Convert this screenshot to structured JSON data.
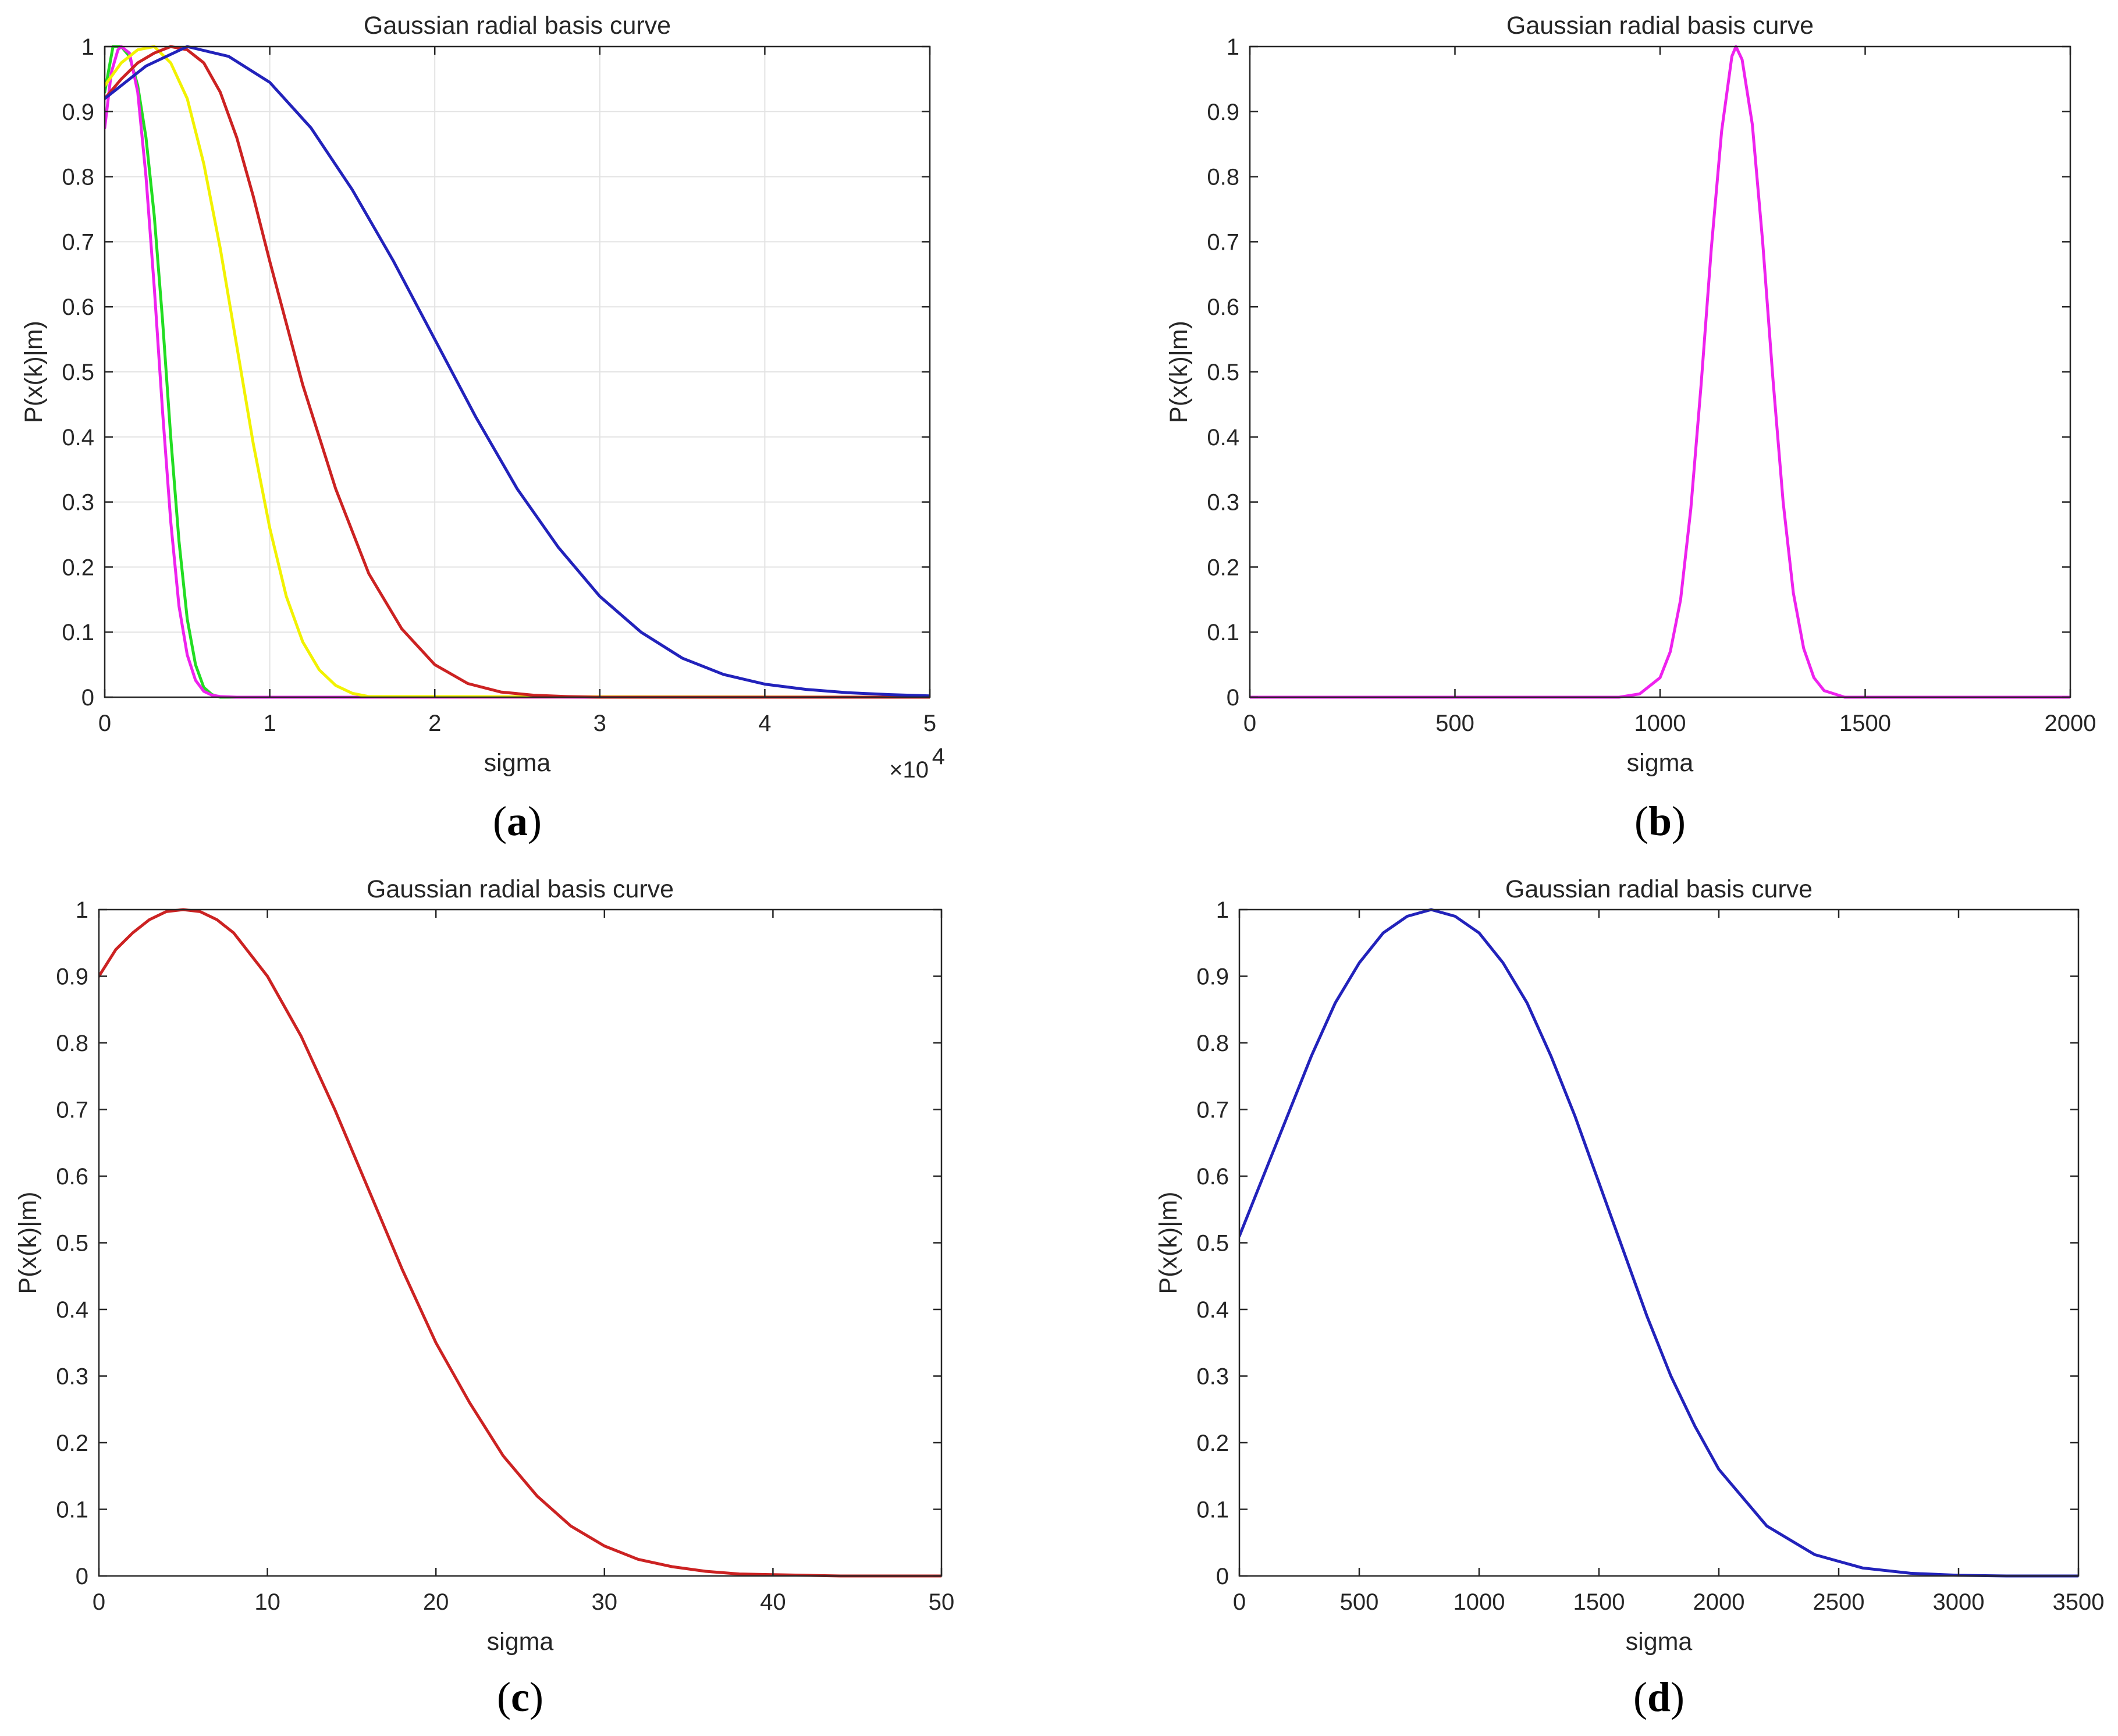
{
  "chart_data": [
    {
      "panel": "a",
      "caption_letter": "a",
      "type": "line",
      "title": "Gaussian radial basis curve",
      "xlabel": "sigma",
      "ylabel": "P(x(k)|m)",
      "x_multiplier": "×10",
      "x_multiplier_exp": "4",
      "grid": true,
      "xlim": [
        0,
        5
      ],
      "ylim": [
        0,
        1
      ],
      "xticks": [
        0,
        1,
        2,
        3,
        4,
        5
      ],
      "xtick_labels": [
        "0",
        "1",
        "2",
        "3",
        "4",
        "5"
      ],
      "yticks": [
        0,
        0.1,
        0.2,
        0.3,
        0.4,
        0.5,
        0.6,
        0.7,
        0.8,
        0.9,
        1
      ],
      "ytick_labels": [
        "0",
        "0.1",
        "0.2",
        "0.3",
        "0.4",
        "0.5",
        "0.6",
        "0.7",
        "0.8",
        "0.9",
        "1"
      ],
      "series": [
        {
          "name": "green",
          "color": "#22dd22",
          "x": [
            0,
            0.05,
            0.1,
            0.15,
            0.2,
            0.25,
            0.3,
            0.35,
            0.4,
            0.45,
            0.5,
            0.55,
            0.6,
            0.65,
            0.7,
            5
          ],
          "y": [
            0.93,
            1,
            1,
            0.985,
            0.94,
            0.86,
            0.74,
            0.58,
            0.4,
            0.24,
            0.12,
            0.05,
            0.015,
            0.004,
            0,
            0
          ]
        },
        {
          "name": "magenta",
          "color": "#ee22ee",
          "x": [
            0,
            0.04,
            0.08,
            0.1,
            0.15,
            0.2,
            0.25,
            0.3,
            0.35,
            0.4,
            0.45,
            0.5,
            0.55,
            0.6,
            0.65,
            0.7,
            0.8,
            5
          ],
          "y": [
            0.875,
            0.96,
            0.995,
            1,
            0.99,
            0.93,
            0.8,
            0.63,
            0.44,
            0.27,
            0.14,
            0.065,
            0.026,
            0.009,
            0.003,
            0.001,
            0,
            0
          ]
        },
        {
          "name": "yellow",
          "color": "#f2f200",
          "x": [
            0,
            0.1,
            0.2,
            0.3,
            0.4,
            0.5,
            0.6,
            0.7,
            0.8,
            0.9,
            1.0,
            1.1,
            1.2,
            1.3,
            1.4,
            1.5,
            1.6,
            5
          ],
          "y": [
            0.94,
            0.975,
            0.995,
            1,
            0.975,
            0.92,
            0.82,
            0.69,
            0.54,
            0.39,
            0.26,
            0.155,
            0.085,
            0.042,
            0.018,
            0.006,
            0.001,
            0
          ]
        },
        {
          "name": "red",
          "color": "#cc2222",
          "x": [
            0,
            0.1,
            0.2,
            0.3,
            0.4,
            0.5,
            0.6,
            0.7,
            0.8,
            0.9,
            1.0,
            1.2,
            1.4,
            1.6,
            1.8,
            2.0,
            2.2,
            2.4,
            2.6,
            2.8,
            3.0,
            5
          ],
          "y": [
            0.92,
            0.95,
            0.975,
            0.99,
            1,
            0.995,
            0.975,
            0.93,
            0.86,
            0.77,
            0.67,
            0.48,
            0.32,
            0.19,
            0.105,
            0.05,
            0.021,
            0.008,
            0.003,
            0.001,
            0,
            0
          ]
        },
        {
          "name": "blue",
          "color": "#2222bb",
          "x": [
            0,
            0.25,
            0.5,
            0.75,
            1.0,
            1.25,
            1.5,
            1.75,
            2.0,
            2.25,
            2.5,
            2.75,
            3.0,
            3.25,
            3.5,
            3.75,
            4.0,
            4.25,
            4.5,
            4.75,
            5.0
          ],
          "y": [
            0.92,
            0.97,
            1,
            0.985,
            0.945,
            0.875,
            0.78,
            0.67,
            0.55,
            0.43,
            0.32,
            0.23,
            0.155,
            0.1,
            0.06,
            0.035,
            0.02,
            0.012,
            0.007,
            0.004,
            0.002
          ]
        }
      ]
    },
    {
      "panel": "b",
      "caption_letter": "b",
      "type": "line",
      "title": "Gaussian radial basis curve",
      "xlabel": "sigma",
      "ylabel": "P(x(k)|m)",
      "grid": false,
      "xlim": [
        0,
        2000
      ],
      "ylim": [
        0,
        1
      ],
      "xticks": [
        0,
        500,
        1000,
        1500,
        2000
      ],
      "xtick_labels": [
        "0",
        "500",
        "1000",
        "1500",
        "2000"
      ],
      "yticks": [
        0,
        0.1,
        0.2,
        0.3,
        0.4,
        0.5,
        0.6,
        0.7,
        0.8,
        0.9,
        1
      ],
      "ytick_labels": [
        "0",
        "0.1",
        "0.2",
        "0.3",
        "0.4",
        "0.5",
        "0.6",
        "0.7",
        "0.8",
        "0.9",
        "1"
      ],
      "series": [
        {
          "name": "magenta",
          "color": "#ee22ee",
          "x": [
            0,
            900,
            950,
            1000,
            1025,
            1050,
            1075,
            1100,
            1125,
            1150,
            1175,
            1185,
            1200,
            1225,
            1250,
            1275,
            1300,
            1325,
            1350,
            1375,
            1400,
            1450,
            2000
          ],
          "y": [
            0,
            0,
            0.005,
            0.03,
            0.07,
            0.15,
            0.29,
            0.48,
            0.69,
            0.87,
            0.985,
            1,
            0.98,
            0.88,
            0.7,
            0.49,
            0.3,
            0.16,
            0.075,
            0.03,
            0.01,
            0,
            0
          ]
        }
      ]
    },
    {
      "panel": "c",
      "caption_letter": "c",
      "type": "line",
      "title": "Gaussian radial basis curve",
      "xlabel": "sigma",
      "ylabel": "P(x(k)|m)",
      "grid": false,
      "xlim": [
        0,
        50
      ],
      "ylim": [
        0,
        1
      ],
      "xticks": [
        0,
        10,
        20,
        30,
        40,
        50
      ],
      "xtick_labels": [
        "0",
        "10",
        "20",
        "30",
        "40",
        "50"
      ],
      "yticks": [
        0,
        0.1,
        0.2,
        0.3,
        0.4,
        0.5,
        0.6,
        0.7,
        0.8,
        0.9,
        1
      ],
      "ytick_labels": [
        "0",
        "0.1",
        "0.2",
        "0.3",
        "0.4",
        "0.5",
        "0.6",
        "0.7",
        "0.8",
        "0.9",
        "1"
      ],
      "series": [
        {
          "name": "red",
          "color": "#cc2222",
          "x": [
            0,
            1,
            2,
            3,
            4,
            5,
            6,
            7,
            8,
            10,
            12,
            14,
            16,
            18,
            20,
            22,
            24,
            26,
            28,
            30,
            32,
            34,
            36,
            38,
            40,
            42,
            44,
            46,
            48,
            50
          ],
          "y": [
            0.9,
            0.94,
            0.965,
            0.985,
            0.997,
            1,
            0.997,
            0.985,
            0.965,
            0.9,
            0.81,
            0.7,
            0.58,
            0.46,
            0.35,
            0.26,
            0.18,
            0.12,
            0.075,
            0.045,
            0.025,
            0.014,
            0.007,
            0.003,
            0.002,
            0.001,
            0,
            0,
            0,
            0
          ]
        }
      ]
    },
    {
      "panel": "d",
      "caption_letter": "d",
      "type": "line",
      "title": "Gaussian radial basis curve",
      "xlabel": "sigma",
      "ylabel": "P(x(k)|m)",
      "grid": false,
      "xlim": [
        0,
        3500
      ],
      "ylim": [
        0,
        1
      ],
      "xticks": [
        0,
        500,
        1000,
        1500,
        2000,
        2500,
        3000,
        3500
      ],
      "xtick_labels": [
        "0",
        "500",
        "1000",
        "1500",
        "2000",
        "2500",
        "3000",
        "3500"
      ],
      "yticks": [
        0,
        0.1,
        0.2,
        0.3,
        0.4,
        0.5,
        0.6,
        0.7,
        0.8,
        0.9,
        1
      ],
      "ytick_labels": [
        "0",
        "0.1",
        "0.2",
        "0.3",
        "0.4",
        "0.5",
        "0.6",
        "0.7",
        "0.8",
        "0.9",
        "1"
      ],
      "series": [
        {
          "name": "blue",
          "color": "#2222bb",
          "x": [
            0,
            100,
            200,
            300,
            400,
            500,
            600,
            700,
            800,
            900,
            1000,
            1100,
            1200,
            1300,
            1400,
            1500,
            1600,
            1700,
            1800,
            1900,
            2000,
            2200,
            2400,
            2600,
            2800,
            3000,
            3200,
            3400,
            3500
          ],
          "y": [
            0.51,
            0.6,
            0.69,
            0.78,
            0.86,
            0.92,
            0.965,
            0.99,
            1,
            0.99,
            0.965,
            0.92,
            0.86,
            0.78,
            0.69,
            0.59,
            0.49,
            0.39,
            0.3,
            0.225,
            0.16,
            0.075,
            0.032,
            0.012,
            0.004,
            0.001,
            0,
            0,
            0
          ]
        }
      ]
    }
  ]
}
